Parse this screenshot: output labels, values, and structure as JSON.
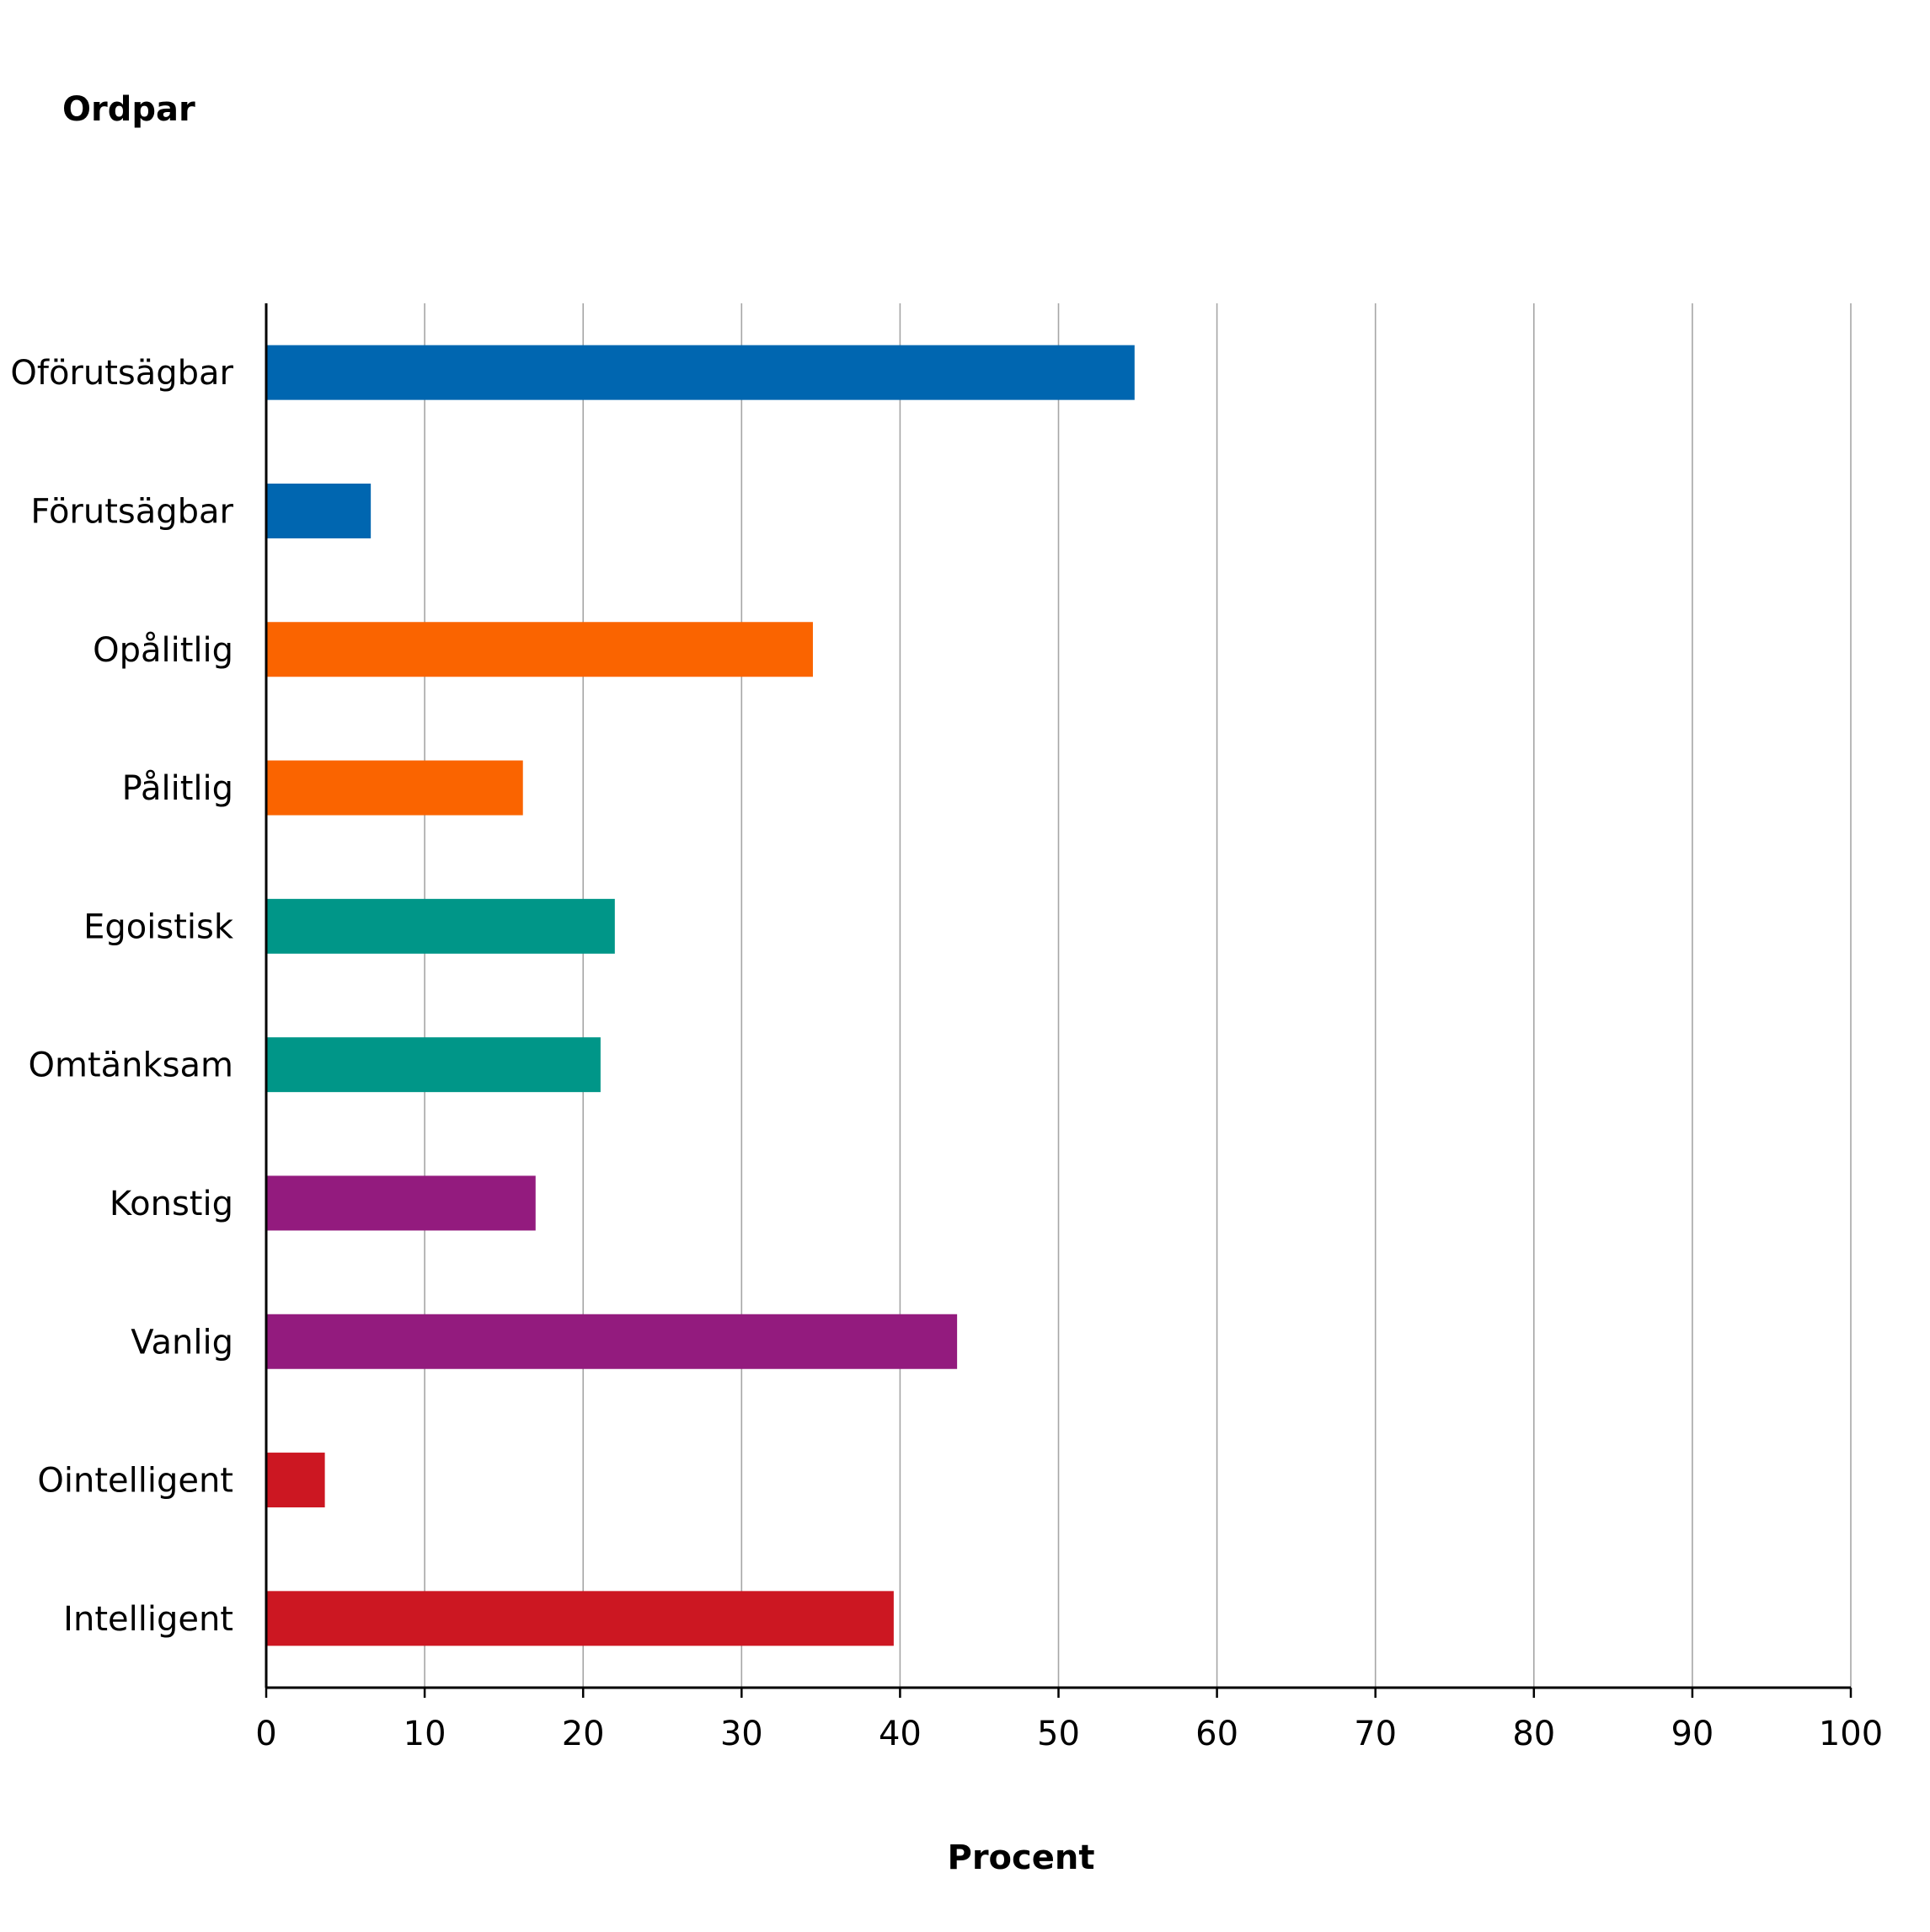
{
  "chart_data": {
    "type": "bar",
    "orientation": "horizontal",
    "y_axis_title": "Ordpar",
    "x_axis_title": "Procent",
    "categories": [
      "Oförutsägbar",
      "Förutsägbar",
      "Opålitlig",
      "Pålitlig",
      "Egoistisk",
      "Omtänksam",
      "Konstig",
      "Vanlig",
      "Ointelligent",
      "Intelligent"
    ],
    "values": [
      54.8,
      6.6,
      34.5,
      16.2,
      22.0,
      21.1,
      17.0,
      43.6,
      3.7,
      39.6
    ],
    "bar_colors": [
      "#0066b0",
      "#0066b0",
      "#fa6400",
      "#fa6400",
      "#009688",
      "#009688",
      "#931b7e",
      "#931b7e",
      "#cc1722",
      "#cc1722"
    ],
    "xlim": [
      0,
      100
    ],
    "x_ticks": [
      "0",
      "10",
      "20",
      "30",
      "40",
      "50",
      "60",
      "70",
      "80",
      "90",
      "100"
    ],
    "grid": "vertical",
    "legend": "none"
  }
}
